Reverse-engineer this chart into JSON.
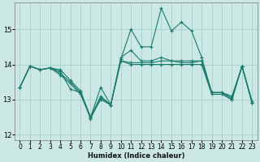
{
  "xlabel": "Humidex (Indice chaleur)",
  "background_color": "#cce8e5",
  "grid_color": "#aad4d0",
  "line_color": "#1a7a6e",
  "xlim": [
    -0.5,
    23.5
  ],
  "ylim": [
    11.85,
    15.75
  ],
  "yticks": [
    12,
    13,
    14,
    15
  ],
  "xticks": [
    0,
    1,
    2,
    3,
    4,
    5,
    6,
    7,
    8,
    9,
    10,
    11,
    12,
    13,
    14,
    15,
    16,
    17,
    18,
    19,
    20,
    21,
    22,
    23
  ],
  "lines": [
    {
      "x": [
        0,
        1,
        2,
        3,
        4,
        5,
        6,
        7,
        8,
        9,
        10,
        11,
        12,
        13,
        14,
        15,
        16,
        17,
        18,
        19,
        20,
        21,
        22,
        23
      ],
      "y": [
        13.35,
        13.95,
        13.85,
        13.9,
        13.85,
        13.55,
        13.25,
        12.5,
        13.1,
        12.85,
        14.15,
        15.0,
        14.5,
        14.5,
        15.6,
        14.95,
        15.2,
        14.95,
        14.2,
        13.2,
        13.2,
        13.1,
        13.95,
        12.95
      ]
    },
    {
      "x": [
        0,
        1,
        2,
        3,
        4,
        5,
        6,
        7,
        8,
        9,
        10,
        11,
        12,
        13,
        14,
        15,
        16,
        17,
        18,
        19,
        20,
        21,
        22,
        23
      ],
      "y": [
        13.35,
        13.95,
        13.85,
        13.9,
        13.75,
        13.5,
        13.2,
        12.5,
        13.35,
        12.85,
        14.2,
        14.4,
        14.1,
        14.1,
        14.2,
        14.1,
        14.05,
        14.05,
        14.1,
        13.2,
        13.2,
        13.05,
        13.95,
        12.9
      ]
    },
    {
      "x": [
        0,
        1,
        2,
        3,
        4,
        5,
        6,
        7,
        8,
        9,
        10,
        11,
        12,
        13,
        14,
        15,
        16,
        17,
        18,
        19,
        20,
        21,
        22,
        23
      ],
      "y": [
        13.35,
        13.95,
        13.85,
        13.9,
        13.7,
        13.45,
        13.15,
        12.5,
        13.0,
        12.85,
        14.1,
        14.0,
        14.0,
        14.0,
        14.0,
        14.0,
        14.0,
        14.0,
        14.0,
        13.15,
        13.15,
        13.0,
        13.95,
        12.9
      ]
    },
    {
      "x": [
        0,
        1,
        2,
        3,
        4,
        5,
        6,
        7,
        8,
        9,
        10,
        11,
        12,
        13,
        14,
        15,
        16,
        17,
        18,
        19,
        20,
        21,
        22,
        23
      ],
      "y": [
        13.35,
        13.95,
        13.85,
        13.9,
        13.8,
        13.3,
        13.2,
        12.45,
        13.05,
        12.85,
        14.1,
        14.05,
        14.05,
        14.05,
        14.1,
        14.1,
        14.1,
        14.1,
        14.1,
        13.2,
        13.2,
        13.0,
        13.95,
        12.9
      ]
    }
  ]
}
